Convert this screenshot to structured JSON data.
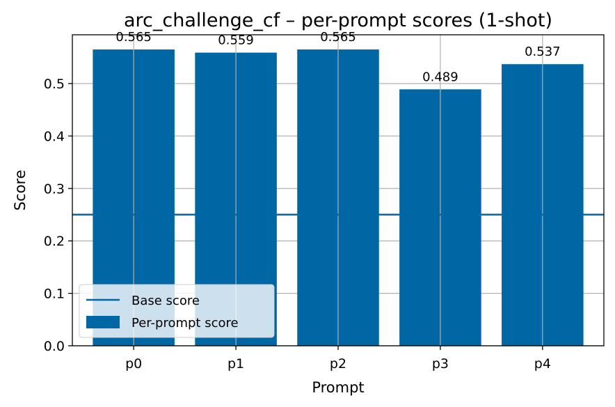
{
  "chart_data": {
    "type": "bar",
    "title": "arc_challenge_cf – per-prompt scores (1-shot)",
    "xlabel": "Prompt",
    "ylabel": "Score",
    "categories": [
      "p0",
      "p1",
      "p2",
      "p3",
      "p4"
    ],
    "series": [
      {
        "name": "Per-prompt score",
        "values": [
          0.565,
          0.559,
          0.565,
          0.489,
          0.537
        ]
      }
    ],
    "data_labels": [
      "0.565",
      "0.559",
      "0.565",
      "0.489",
      "0.537"
    ],
    "baseline": {
      "name": "Base score",
      "value": 0.25
    },
    "ylim": [
      0,
      0.593
    ],
    "yticks": [
      0.0,
      0.1,
      0.2,
      0.3,
      0.4,
      0.5
    ],
    "ytick_labels": [
      "0.0",
      "0.1",
      "0.2",
      "0.3",
      "0.4",
      "0.5"
    ],
    "grid": true,
    "legend": {
      "position": "lower-left",
      "entries": [
        "Base score",
        "Per-prompt score"
      ]
    },
    "colors": {
      "bar": "#0067a5",
      "baseline": "#0067a5",
      "grid": "#b0b0b0"
    }
  }
}
